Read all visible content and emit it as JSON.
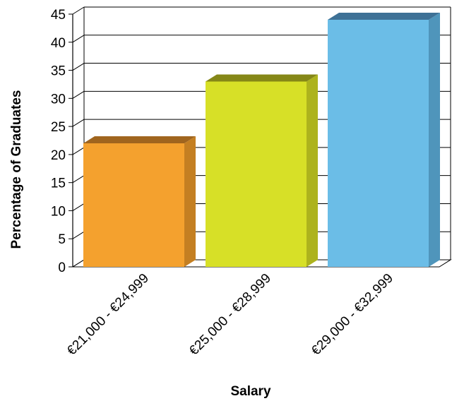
{
  "chart_data": {
    "type": "bar",
    "style": "3d",
    "categories": [
      "€21,000 - €24,999",
      "€25,000 - €28,999",
      "€29,000 - €32,999"
    ],
    "values": [
      22,
      33,
      44
    ],
    "colors": [
      {
        "front": "#f4a12e",
        "top": "#a0651e",
        "side": "#c47f22"
      },
      {
        "front": "#d7e027",
        "top": "#858717",
        "side": "#adb31d"
      },
      {
        "front": "#6bbde7",
        "top": "#3e7196",
        "side": "#4f95bb"
      }
    ],
    "xlabel": "Salary",
    "ylabel": "Percentage of Graduates",
    "ylim": [
      0,
      45
    ],
    "yticks": [
      "0",
      "5",
      "10",
      "15",
      "20",
      "25",
      "30",
      "35",
      "40",
      "45"
    ],
    "grid": true,
    "legend": "none"
  }
}
